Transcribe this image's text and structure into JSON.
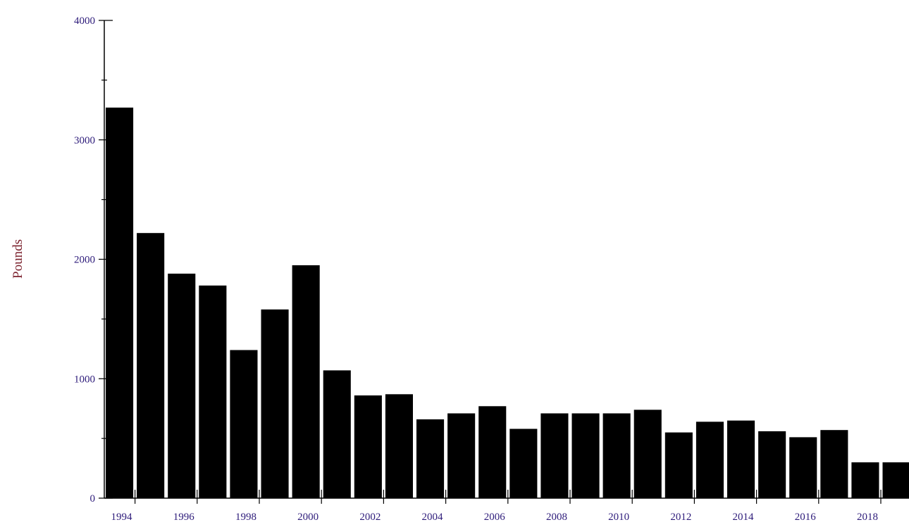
{
  "colors": {
    "bar": "#000000",
    "axis": "#000000",
    "tick_label": "#2d1b7a",
    "axis_title": "#7a1f2b"
  },
  "chart_data": {
    "type": "bar",
    "title": "",
    "xlabel": "",
    "ylabel": "Pounds",
    "ylim": [
      0,
      4000
    ],
    "y_ticks": [
      0,
      1000,
      2000,
      3000,
      4000
    ],
    "y_tick_labels": [
      "0",
      "1000",
      "2000",
      "3000",
      "4000"
    ],
    "x_tick_labels": [
      "1994",
      "1996",
      "1998",
      "2000",
      "2002",
      "2004",
      "2006",
      "2008",
      "2010",
      "2012",
      "2014",
      "2016",
      "2018"
    ],
    "categories": [
      "1994",
      "1995",
      "1996",
      "1997",
      "1998",
      "1999",
      "2000",
      "2001",
      "2002",
      "2003",
      "2004",
      "2005",
      "2006",
      "2007",
      "2008",
      "2009",
      "2010",
      "2011",
      "2012",
      "2013",
      "2014",
      "2015",
      "2016",
      "2017",
      "2018",
      "2019"
    ],
    "values": [
      3270,
      2220,
      1880,
      1780,
      1240,
      1580,
      1950,
      1070,
      860,
      870,
      660,
      710,
      770,
      580,
      710,
      710,
      710,
      740,
      550,
      640,
      650,
      560,
      510,
      570,
      300,
      300
    ],
    "grid": false,
    "legend": "none"
  }
}
